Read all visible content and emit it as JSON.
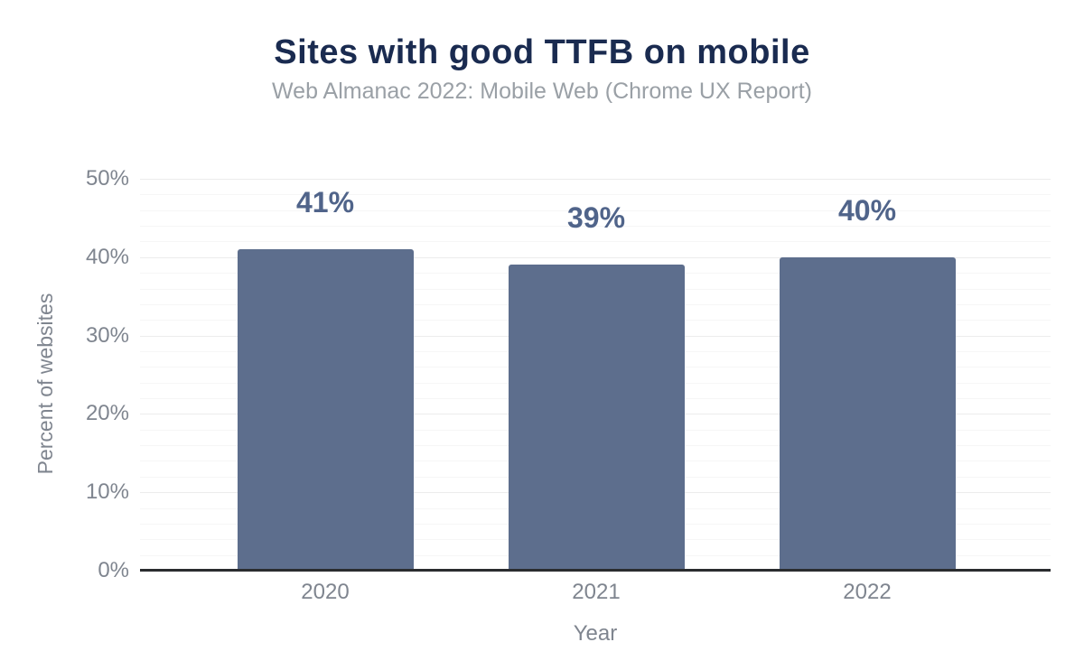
{
  "header": {
    "title": "Sites with good TTFB on mobile",
    "subtitle": "Web Almanac 2022: Mobile Web (Chrome UX Report)"
  },
  "chart_data": {
    "type": "bar",
    "title": "Sites with good TTFB on mobile",
    "subtitle": "Web Almanac 2022: Mobile Web (Chrome UX Report)",
    "categories": [
      "2020",
      "2021",
      "2022"
    ],
    "values": [
      41,
      39,
      40
    ],
    "data_labels": [
      "41%",
      "39%",
      "40%"
    ],
    "xlabel": "Year",
    "ylabel": "Percent of websites",
    "ylim": [
      0,
      50
    ],
    "y_major_ticks": [
      0,
      10,
      20,
      30,
      40,
      50
    ],
    "y_tick_labels": [
      "0%",
      "10%",
      "20%",
      "30%",
      "40%",
      "50%"
    ],
    "y_minor_step": 2,
    "y_major_step": 10,
    "grid": true,
    "legend": "none"
  },
  "colors": {
    "background": "#ffffff",
    "title": "#1a2b50",
    "subtitle": "#9aa0a6",
    "bar": "#5d6e8d",
    "data_label": "#50648a",
    "axis_text": "#7f858f",
    "axis_line": "#2a2c2f",
    "grid_major": "#ececec",
    "grid_minor": "#f6f6f6"
  }
}
